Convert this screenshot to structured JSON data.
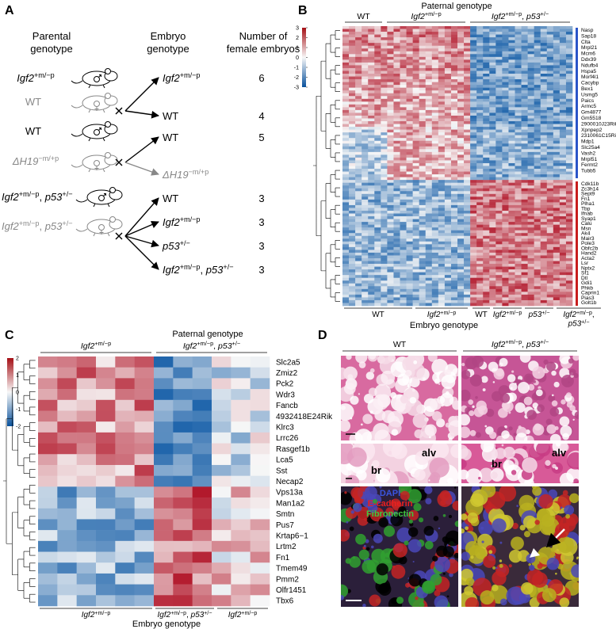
{
  "panel_a": {
    "label": "A",
    "headers": [
      [
        "Parental",
        "genotype"
      ],
      [
        "Embryo",
        "genotype"
      ],
      [
        "Number of",
        "female embryos"
      ]
    ],
    "crosses": [
      {
        "father": {
          "parts": [
            {
              "text": "Igf2",
              "style": "i"
            },
            {
              "text": "+m/−p",
              "style": "sup"
            }
          ]
        },
        "mother": {
          "parts": [
            {
              "text": "WT"
            }
          ],
          "color": "#888888"
        },
        "offspring": [
          {
            "genotype": {
              "parts": [
                {
                  "text": "Igf2",
                  "style": "i"
                },
                {
                  "text": "+m/−p",
                  "style": "sup"
                }
              ]
            },
            "count": 6
          },
          {
            "genotype": {
              "parts": [
                {
                  "text": "WT"
                }
              ]
            },
            "count": 4
          }
        ]
      },
      {
        "father": {
          "parts": [
            {
              "text": "WT"
            }
          ]
        },
        "mother": {
          "parts": [
            {
              "text": "ΔH19",
              "style": "i"
            },
            {
              "text": "−m/+p",
              "style": "sup"
            }
          ],
          "color": "#888888"
        },
        "offspring": [
          {
            "genotype": {
              "parts": [
                {
                  "text": "WT"
                }
              ]
            },
            "count": 5
          },
          {
            "genotype": {
              "parts": [
                {
                  "text": "ΔH19",
                  "style": "i"
                },
                {
                  "text": "−m/+p",
                  "style": "sup"
                }
              ],
              "color": "#888888"
            }
          }
        ]
      },
      {
        "father": {
          "parts": [
            {
              "text": "Igf2",
              "style": "i"
            },
            {
              "text": "+m/−p",
              "style": "sup"
            },
            {
              "text": ", "
            },
            {
              "text": "p53",
              "style": "i"
            },
            {
              "text": "+/−",
              "style": "sup"
            }
          ]
        },
        "mother": {
          "parts": [
            {
              "text": "Igf2",
              "style": "i"
            },
            {
              "text": "+m/−p",
              "style": "sup"
            },
            {
              "text": ", "
            },
            {
              "text": "p53",
              "style": "i"
            },
            {
              "text": "+/−",
              "style": "sup"
            }
          ],
          "color": "#888888"
        },
        "offspring": [
          {
            "genotype": {
              "parts": [
                {
                  "text": "WT"
                }
              ]
            },
            "count": 3
          },
          {
            "genotype": {
              "parts": [
                {
                  "text": "Igf2",
                  "style": "i"
                },
                {
                  "text": "+m/−p",
                  "style": "sup"
                }
              ]
            },
            "count": 3
          },
          {
            "genotype": {
              "parts": [
                {
                  "text": "p53",
                  "style": "i"
                },
                {
                  "text": "+/−",
                  "style": "sup"
                }
              ]
            },
            "count": 3
          },
          {
            "genotype": {
              "parts": [
                {
                  "text": "Igf2",
                  "style": "i"
                },
                {
                  "text": "+m/−p",
                  "style": "sup"
                },
                {
                  "text": ", "
                },
                {
                  "text": "p53",
                  "style": "i"
                },
                {
                  "text": "+/−",
                  "style": "sup"
                }
              ]
            },
            "count": 3
          }
        ]
      }
    ]
  },
  "panel_b": {
    "label": "B",
    "title": "Paternal genotype",
    "groups": [
      {
        "parts": [
          {
            "text": "WT"
          }
        ]
      },
      {
        "parts": [
          {
            "text": "Igf2",
            "style": "i"
          },
          {
            "text": "+m/−p",
            "style": "sup"
          }
        ]
      },
      {
        "parts": [
          {
            "text": "Igf2",
            "style": "i"
          },
          {
            "text": "+m/−p",
            "style": "sup"
          },
          {
            "text": ", "
          },
          {
            "text": "p53",
            "style": "i"
          },
          {
            "text": "+/−",
            "style": "sup"
          }
        ]
      }
    ],
    "colorbar_ticks": [
      3,
      2,
      1,
      0,
      -1,
      -2,
      -3
    ],
    "genes_up": [
      "Nasp",
      "Sap18",
      "Clta",
      "Mrpl21",
      "Mcm6",
      "Ddx39",
      "Ndufb4",
      "Hspa5",
      "Morf4l1",
      "Cacybp",
      "Bex1",
      "Usmg5",
      "Paics",
      "Armc5",
      "Gm4877",
      "Gm5518",
      "2900010J23Rik",
      "Xpnpep2",
      "2310061C15Rik",
      "Mdp1",
      "Slc25a4",
      "Vash2",
      "Mrpl51",
      "Fermt2",
      "Tubb5"
    ],
    "genes_down": [
      "Cdk11b",
      "Zc3h14",
      "Sept9",
      "Fn1",
      "Plha1",
      "Tbp",
      "Ifnab",
      "Syap1",
      "Calu",
      "Msn",
      "Ak4",
      "Mair3",
      "Pole3",
      "Obfc2b",
      "Hand2",
      "Acta2",
      "Lsr",
      "Nptx2",
      "Sf1",
      "Dtl",
      "Gdi1",
      "Phkb",
      "Caprin1",
      "Pias3",
      "Golt1b"
    ],
    "embryo_groups": [
      {
        "parts": [
          {
            "text": "WT"
          }
        ]
      },
      {
        "parts": [
          {
            "text": "Igf2",
            "style": "i"
          },
          {
            "text": "+m/−p",
            "style": "sup"
          }
        ]
      },
      {
        "parts": [
          {
            "text": "WT"
          }
        ]
      },
      {
        "parts": [
          {
            "text": "Igf2",
            "style": "i"
          },
          {
            "text": "+m/−p",
            "style": "sup"
          }
        ]
      },
      {
        "parts": [
          {
            "text": "p53",
            "style": "i"
          },
          {
            "text": "+/−",
            "style": "sup"
          }
        ]
      },
      {
        "lines": [
          {
            "parts": [
              {
                "text": "Igf2",
                "style": "i"
              },
              {
                "text": "+m/−p",
                "style": "sup"
              },
              {
                "text": ","
              }
            ]
          },
          {
            "parts": [
              {
                "text": "p53",
                "style": "i"
              },
              {
                "text": "+/−",
                "style": "sup"
              }
            ]
          }
        ]
      }
    ],
    "xlabel": "Embryo genotype"
  },
  "panel_c": {
    "label": "C",
    "title": "Paternal genotype",
    "groups": [
      {
        "parts": [
          {
            "text": "Igf2",
            "style": "i"
          },
          {
            "text": "+m/−p",
            "style": "sup"
          }
        ]
      },
      {
        "parts": [
          {
            "text": "Igf2",
            "style": "i"
          },
          {
            "text": "+m/−p",
            "style": "sup"
          },
          {
            "text": ", "
          },
          {
            "text": "p53",
            "style": "i"
          },
          {
            "text": "+/−",
            "style": "sup"
          }
        ]
      }
    ],
    "colorbar_ticks": [
      2,
      1,
      0,
      -1,
      -2
    ],
    "genes": [
      "Slc2a5",
      "Zmiz2",
      "Pck2",
      "Wdr3",
      "Fancb",
      "4932418E24Rik",
      "Klrc3",
      "Lrrc26",
      "Rasgef1b",
      "Lca5",
      "Sst",
      "Necap2",
      "Vps13a",
      "Man1a2",
      "Smtn",
      "Pus7",
      "Krtap6−1",
      "Lrtm2",
      "Fn1",
      "Tmem49",
      "Pmm2",
      "Olfr1451",
      "Tbx6"
    ],
    "embryo_groups": [
      {
        "parts": [
          {
            "text": "Igf2",
            "style": "i"
          },
          {
            "text": "+m/−p",
            "style": "sup"
          }
        ]
      },
      {
        "parts": [
          {
            "text": "Igf2",
            "style": "i"
          },
          {
            "text": "+m/−p",
            "style": "sup"
          },
          {
            "text": ", "
          },
          {
            "text": "p53",
            "style": "i"
          },
          {
            "text": "+/−",
            "style": "sup"
          }
        ]
      },
      {
        "parts": [
          {
            "text": "Igf2",
            "style": "i"
          },
          {
            "text": "+m/−p",
            "style": "sup"
          }
        ]
      }
    ],
    "xlabel": "Embryo genotype"
  },
  "panel_d": {
    "label": "D",
    "groups": [
      {
        "parts": [
          {
            "text": "WT"
          }
        ]
      },
      {
        "parts": [
          {
            "text": "Igf2",
            "style": "i"
          },
          {
            "text": "+m/−p",
            "style": "sup"
          },
          {
            "text": ", "
          },
          {
            "text": "p53",
            "style": "i"
          },
          {
            "text": "+/−",
            "style": "sup"
          }
        ]
      }
    ],
    "insets": [
      [
        "br",
        "alv"
      ],
      [
        "br",
        "alv"
      ]
    ],
    "stains": [
      {
        "text": "DAPI",
        "color": "#3a55e0"
      },
      {
        "text": "E-cadherin",
        "color": "#e82020"
      },
      {
        "text": "Fibronectin",
        "color": "#40c840"
      }
    ]
  }
}
